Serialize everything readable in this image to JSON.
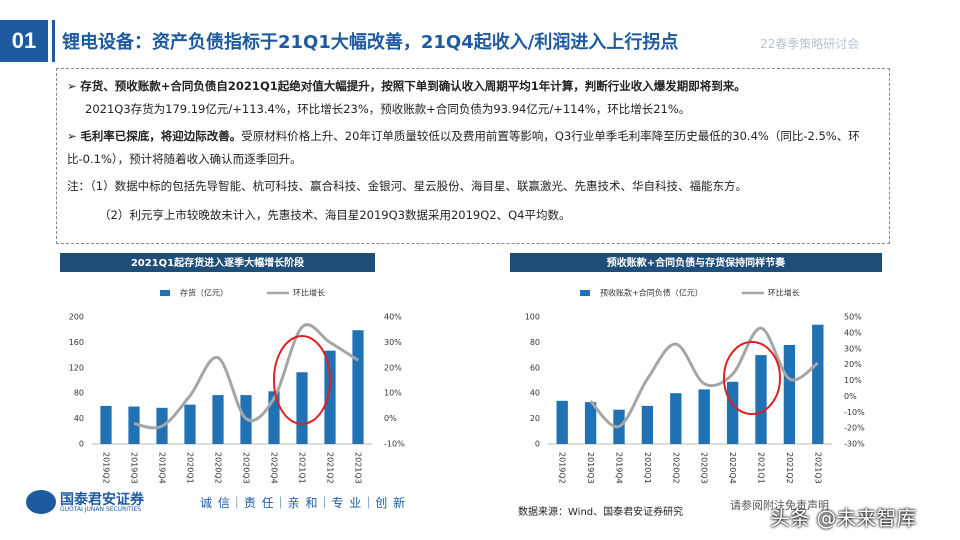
{
  "header": {
    "number": "01",
    "title": "锂电设备：资产负债指标于21Q1大幅改善，21Q4起收入/利润进入上行拐点",
    "watermark": "22春季策略研讨会"
  },
  "bullets": [
    {
      "bold": "存货、预收账款+合同负债自2021Q1起绝对值大幅提升，按照下单到确认收入周期平均1年计算，判断行业收入爆发期即将到来。",
      "text": "",
      "detail": "2021Q3存货为179.19亿元/+113.4%，环比增长23%，预收账款+合同负债为93.94亿元/+114%，环比增长21%。"
    },
    {
      "bold": "毛利率已探底，将迎边际改善。",
      "text": "受原材料价格上升、20年订单质量较低以及费用前置等影响，Q3行业单季毛利率降至历史最低的30.4%（同比-2.5%、环比-0.1%），预计将随着收入确认而逐季回升。",
      "detail": ""
    }
  ],
  "notes": [
    "注：（1）数据中标的包括先导智能、杭可科技、赢合科技、金银河、星云股份、海目星、联赢激光、先惠技术、华自科技、福能东方。",
    "（2）利元亨上市较晚故未计入，先惠技术、海目星2019Q3数据采用2019Q2、Q4平均数。"
  ],
  "chart_data": [
    {
      "type": "bar",
      "title": "2021Q1起存货进入逐季大幅增长阶段",
      "categories": [
        "2019Q2",
        "2019Q3",
        "2019Q4",
        "2020Q1",
        "2020Q2",
        "2020Q3",
        "2020Q4",
        "2021Q1",
        "2021Q2",
        "2021Q3"
      ],
      "series": [
        {
          "name": "存货（亿元）",
          "type": "bar",
          "color": "#2171b5",
          "values": [
            60,
            59,
            57,
            62,
            77,
            77,
            83,
            113,
            147,
            179.19
          ]
        },
        {
          "name": "环比增长",
          "type": "line",
          "axis": "y2",
          "color": "#a6a6a6",
          "values": [
            null,
            -2,
            -3,
            9,
            24,
            0,
            8,
            36,
            30,
            23
          ]
        }
      ],
      "ylim": [
        0,
        200
      ],
      "yticks": [
        0,
        40,
        80,
        120,
        160,
        200
      ],
      "y2lim": [
        -10,
        40
      ],
      "y2ticks": [
        {
          "value": -10,
          "label": "-10%"
        },
        {
          "value": 0,
          "label": "0%"
        },
        {
          "value": 10,
          "label": "10%"
        },
        {
          "value": 20,
          "label": "20%"
        },
        {
          "value": 30,
          "label": "30%"
        },
        {
          "value": 40,
          "label": "40%"
        }
      ],
      "grid": false,
      "legend": "top"
    },
    {
      "type": "bar",
      "title": "预收账款+合同负债与存货保持同样节奏",
      "categories": [
        "2019Q2",
        "2019Q3",
        "2019Q4",
        "2020Q1",
        "2020Q2",
        "2020Q3",
        "2020Q4",
        "2021Q1",
        "2021Q2",
        "2021Q3"
      ],
      "series": [
        {
          "name": "预收账款+合同负债（亿元）",
          "type": "bar",
          "color": "#2171b5",
          "values": [
            34,
            33,
            27,
            30,
            40,
            43,
            49,
            70,
            78,
            93.94
          ]
        },
        {
          "name": "环比增长",
          "type": "line",
          "axis": "y2",
          "color": "#a6a6a6",
          "values": [
            null,
            -3,
            -19,
            11,
            33,
            8,
            14,
            43,
            11,
            21
          ]
        }
      ],
      "ylim": [
        0,
        100
      ],
      "yticks": [
        0,
        20,
        40,
        60,
        80,
        100
      ],
      "y2lim": [
        -30,
        50
      ],
      "y2ticks": [
        {
          "value": -30,
          "label": "-30%"
        },
        {
          "value": -20,
          "label": "-20%"
        },
        {
          "value": -10,
          "label": "-10%"
        },
        {
          "value": 0,
          "label": "0%"
        },
        {
          "value": 10,
          "label": "10%"
        },
        {
          "value": 20,
          "label": "20%"
        },
        {
          "value": 30,
          "label": "30%"
        },
        {
          "value": 40,
          "label": "40%"
        },
        {
          "value": 50,
          "label": "50%"
        }
      ],
      "grid": false,
      "legend": "top"
    }
  ],
  "footer": {
    "source": "数据来源：Wind、国泰君安证券研究",
    "disclaimer": "请参阅附注免责声明",
    "logo": "国泰君安证券",
    "logo_en": "GUOTAI JUNAN SECURITIES",
    "slogan": "诚 信｜责 任｜亲 和｜专 业｜创 新",
    "watermark": "头条 @未来智库"
  }
}
